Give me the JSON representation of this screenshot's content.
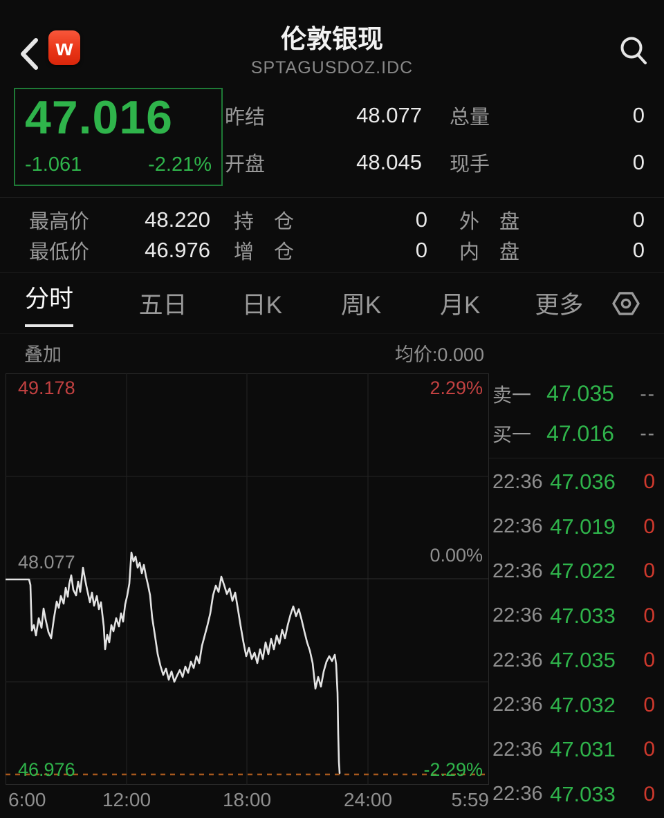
{
  "colors": {
    "green": "#2fb44b",
    "red": "#cf392d",
    "label_red": "#c24141",
    "gray": "#8f8f8f",
    "dashed_orange": "#a7591d",
    "box_border_green": "#1e7a36"
  },
  "header": {
    "title": "伦敦银现",
    "subtitle": "SPTAGUSDOZ.IDC",
    "back_icon": "chevron-left",
    "logo_letter": "w",
    "search_icon": "magnifier"
  },
  "quote": {
    "last": "47.016",
    "change": "-1.061",
    "change_pct": "-2.21%",
    "r1l1": "昨结",
    "r1v1": "48.077",
    "r1l2": "总量",
    "r1v2": "0",
    "r2l1": "开盘",
    "r2v1": "48.045",
    "r2l2": "现手",
    "r2v2": "0"
  },
  "stats": {
    "rows": [
      {
        "c1l": "最高价",
        "c1v": "48.220",
        "c2l": "持　仓",
        "c2v": "0",
        "c3l": "外　盘",
        "c3v": "0"
      },
      {
        "c1l": "最低价",
        "c1v": "46.976",
        "c2l": "增　仓",
        "c2v": "0",
        "c3l": "内　盘",
        "c3v": "0"
      }
    ]
  },
  "tabs": {
    "items": [
      "分时",
      "五日",
      "日K",
      "周K",
      "月K",
      "更多"
    ],
    "active_index": 0,
    "settings_icon": "hex-nut"
  },
  "chart": {
    "overlay_label": "叠加",
    "avg_label": "均价:0.000",
    "y_left_top": "49.178",
    "y_left_mid": "48.077",
    "y_left_bottom": "46.976",
    "y_right_top": "2.29%",
    "y_right_mid": "0.00%",
    "y_right_bottom": "-2.29%",
    "x_ticks": [
      "6:00",
      "12:00",
      "18:00",
      "24:00",
      "5:59"
    ],
    "type": "line",
    "y_range": [
      46.976,
      49.178
    ],
    "prev_close": 48.077,
    "dashed_low_line_y": 580,
    "line_points": [
      [
        0,
        298
      ],
      [
        34,
        298
      ],
      [
        36,
        306
      ],
      [
        38,
        372
      ],
      [
        41,
        364
      ],
      [
        44,
        379
      ],
      [
        48,
        354
      ],
      [
        52,
        368
      ],
      [
        55,
        340
      ],
      [
        58,
        356
      ],
      [
        62,
        374
      ],
      [
        66,
        383
      ],
      [
        70,
        354
      ],
      [
        74,
        330
      ],
      [
        77,
        339
      ],
      [
        80,
        322
      ],
      [
        84,
        333
      ],
      [
        87,
        310
      ],
      [
        90,
        323
      ],
      [
        92,
        305
      ],
      [
        95,
        292
      ],
      [
        98,
        313
      ],
      [
        102,
        321
      ],
      [
        105,
        301
      ],
      [
        108,
        316
      ],
      [
        112,
        281
      ],
      [
        115,
        298
      ],
      [
        118,
        313
      ],
      [
        122,
        331
      ],
      [
        125,
        317
      ],
      [
        128,
        336
      ],
      [
        132,
        322
      ],
      [
        135,
        341
      ],
      [
        138,
        331
      ],
      [
        142,
        366
      ],
      [
        144,
        399
      ],
      [
        147,
        378
      ],
      [
        150,
        389
      ],
      [
        153,
        364
      ],
      [
        156,
        373
      ],
      [
        160,
        354
      ],
      [
        164,
        366
      ],
      [
        167,
        347
      ],
      [
        170,
        359
      ],
      [
        173,
        334
      ],
      [
        176,
        321
      ],
      [
        179,
        304
      ],
      [
        182,
        259
      ],
      [
        185,
        272
      ],
      [
        188,
        265
      ],
      [
        191,
        281
      ],
      [
        194,
        274
      ],
      [
        197,
        289
      ],
      [
        200,
        277
      ],
      [
        203,
        293
      ],
      [
        206,
        306
      ],
      [
        209,
        321
      ],
      [
        212,
        353
      ],
      [
        216,
        379
      ],
      [
        220,
        406
      ],
      [
        224,
        423
      ],
      [
        228,
        436
      ],
      [
        232,
        427
      ],
      [
        236,
        443
      ],
      [
        240,
        431
      ],
      [
        244,
        446
      ],
      [
        248,
        437
      ],
      [
        252,
        429
      ],
      [
        256,
        439
      ],
      [
        260,
        424
      ],
      [
        264,
        433
      ],
      [
        268,
        417
      ],
      [
        272,
        426
      ],
      [
        276,
        409
      ],
      [
        280,
        419
      ],
      [
        284,
        394
      ],
      [
        288,
        379
      ],
      [
        292,
        364
      ],
      [
        296,
        347
      ],
      [
        300,
        321
      ],
      [
        304,
        307
      ],
      [
        308,
        316
      ],
      [
        312,
        294
      ],
      [
        316,
        306
      ],
      [
        320,
        319
      ],
      [
        324,
        311
      ],
      [
        328,
        329
      ],
      [
        332,
        317
      ],
      [
        336,
        341
      ],
      [
        340,
        366
      ],
      [
        344,
        389
      ],
      [
        348,
        409
      ],
      [
        352,
        397
      ],
      [
        356,
        413
      ],
      [
        360,
        404
      ],
      [
        364,
        419
      ],
      [
        368,
        399
      ],
      [
        372,
        413
      ],
      [
        376,
        389
      ],
      [
        380,
        406
      ],
      [
        384,
        384
      ],
      [
        388,
        399
      ],
      [
        392,
        379
      ],
      [
        396,
        391
      ],
      [
        400,
        371
      ],
      [
        404,
        383
      ],
      [
        408,
        364
      ],
      [
        412,
        349
      ],
      [
        416,
        337
      ],
      [
        420,
        351
      ],
      [
        424,
        341
      ],
      [
        428,
        356
      ],
      [
        432,
        373
      ],
      [
        436,
        389
      ],
      [
        440,
        401
      ],
      [
        444,
        419
      ],
      [
        448,
        456
      ],
      [
        452,
        439
      ],
      [
        456,
        453
      ],
      [
        460,
        431
      ],
      [
        464,
        417
      ],
      [
        468,
        409
      ],
      [
        472,
        416
      ],
      [
        476,
        407
      ],
      [
        478,
        421
      ],
      [
        480,
        462
      ],
      [
        481,
        522
      ],
      [
        482,
        562
      ],
      [
        483,
        578
      ]
    ]
  },
  "order_book": {
    "sell_label": "卖一",
    "sell_price": "47.035",
    "sell_vol": "--",
    "buy_label": "买一",
    "buy_price": "47.016",
    "buy_vol": "--"
  },
  "trades": [
    {
      "time": "22:36",
      "price": "47.036",
      "vol": "0"
    },
    {
      "time": "22:36",
      "price": "47.019",
      "vol": "0"
    },
    {
      "time": "22:36",
      "price": "47.022",
      "vol": "0"
    },
    {
      "time": "22:36",
      "price": "47.033",
      "vol": "0"
    },
    {
      "time": "22:36",
      "price": "47.035",
      "vol": "0"
    },
    {
      "time": "22:36",
      "price": "47.032",
      "vol": "0"
    },
    {
      "time": "22:36",
      "price": "47.031",
      "vol": "0"
    },
    {
      "time": "22:36",
      "price": "47.033",
      "vol": "0"
    }
  ]
}
